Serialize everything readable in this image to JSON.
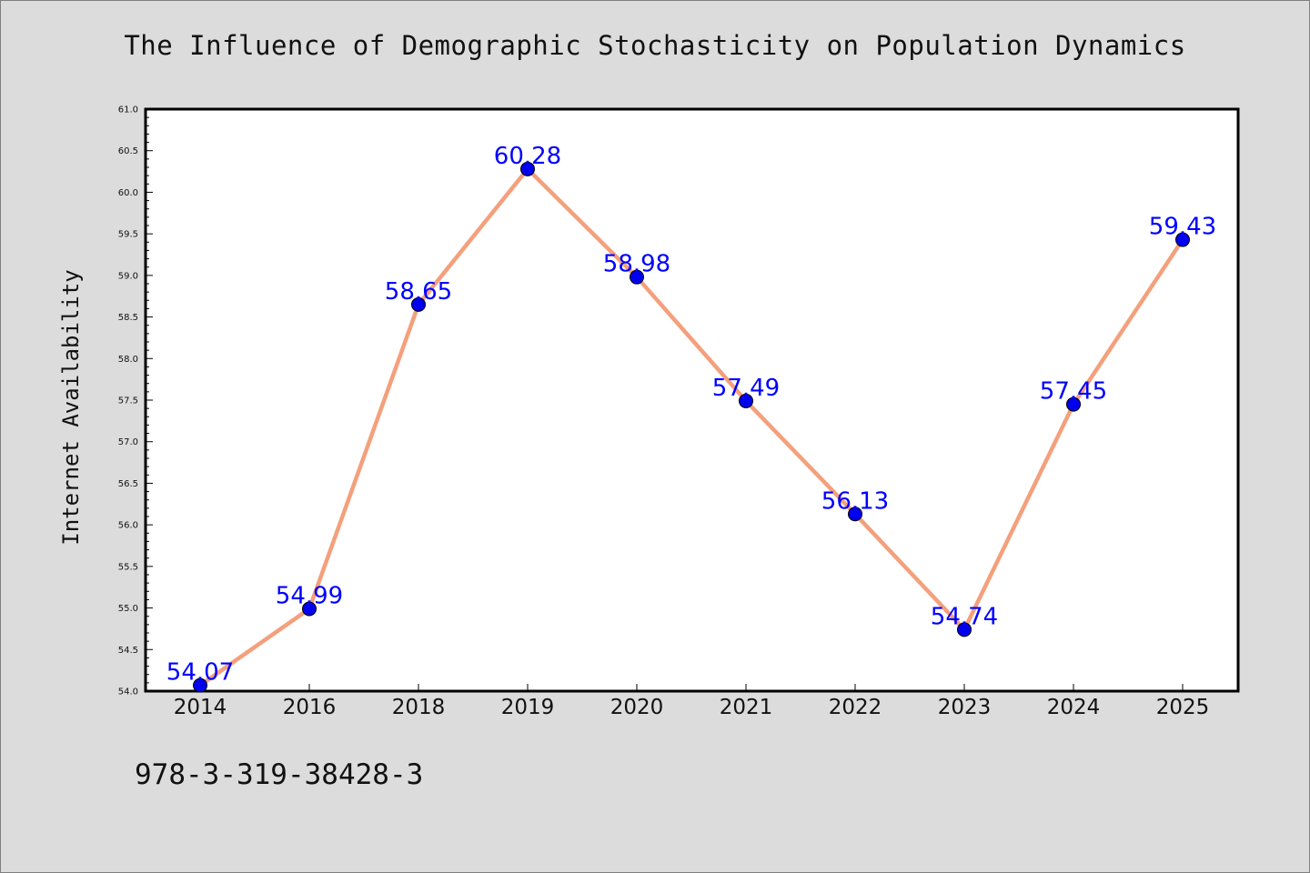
{
  "chart_data": {
    "type": "line",
    "title": "The Influence of Demographic Stochasticity on Population Dynamics",
    "xlabel": "",
    "ylabel": "Internet Availability",
    "categories": [
      "2014",
      "2016",
      "2018",
      "2019",
      "2020",
      "2021",
      "2022",
      "2023",
      "2024",
      "2025"
    ],
    "values": [
      54.07,
      54.99,
      58.65,
      60.28,
      58.98,
      57.49,
      56.13,
      54.74,
      57.45,
      59.43
    ],
    "data_labels": [
      "54.07",
      "54.99",
      "58.65",
      "60.28",
      "58.98",
      "57.49",
      "56.13",
      "54.74",
      "57.45",
      "59.43"
    ],
    "ylim": [
      54.0,
      61.0
    ],
    "yticks": [
      "54.0",
      "54.5",
      "55.0",
      "55.5",
      "56.0",
      "56.5",
      "57.0",
      "57.5",
      "58.0",
      "58.5",
      "59.0",
      "59.5",
      "60.0",
      "60.5",
      "61.0"
    ],
    "grid": false,
    "line_color": "#f4a07c",
    "marker_color": "#0000ee",
    "label_color": "#0000ff",
    "background": "#dcdcdc",
    "plot_background": "#ffffff"
  },
  "footer_text": "978-3-319-38428-3"
}
